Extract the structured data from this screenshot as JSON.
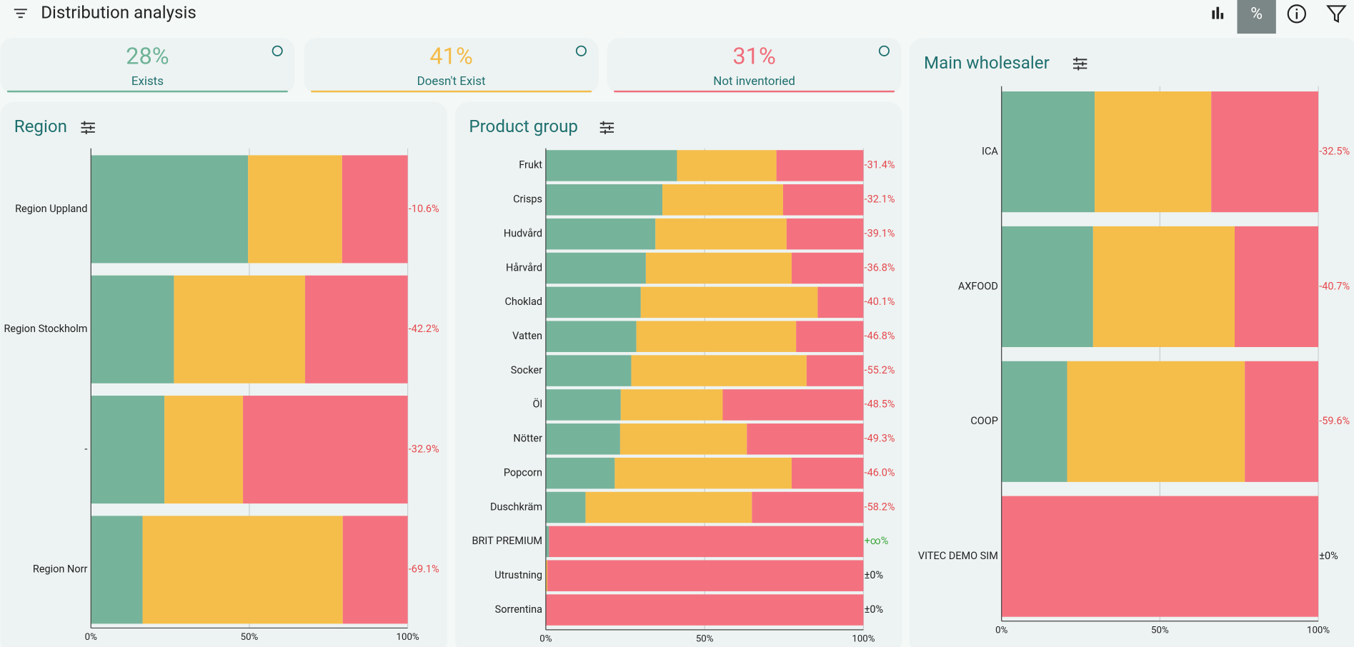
{
  "header": {
    "title": "Distribution analysis"
  },
  "kpis": [
    {
      "value": "28%",
      "label": "Exists",
      "color": "#6fb398"
    },
    {
      "value": "41%",
      "label": "Doesn't Exist",
      "color": "#f4bb48"
    },
    {
      "value": "31%",
      "label": "Not inventoried",
      "color": "#f06d7a"
    }
  ],
  "chart_data": [
    {
      "type": "stacked-bar",
      "title": "Region",
      "categories": [
        "Region Uppland",
        "Region Stockholm",
        "-",
        "Region Norr"
      ],
      "changes": [
        "-10.6%",
        "-42.2%",
        "-32.9%",
        "-69.1%"
      ],
      "series": [
        {
          "color": "#76b39b",
          "values": [
            49.6,
            26.2,
            23.2,
            16.3
          ]
        },
        {
          "color": "#f5be4b",
          "values": [
            29.7,
            41.4,
            24.8,
            63.2
          ]
        },
        {
          "color": "#f47280",
          "values": [
            20.7,
            32.4,
            52.0,
            20.5
          ]
        }
      ],
      "xlim": [
        0,
        100
      ],
      "xticks": [
        {
          "value": 0,
          "label": "0%"
        },
        {
          "value": 50,
          "label": "50%"
        },
        {
          "value": 100,
          "label": "100%"
        }
      ],
      "grid": true
    },
    {
      "type": "stacked-bar",
      "title": "Product group",
      "categories": [
        "Frukt",
        "Crisps",
        "Hudvård",
        "Hårvård",
        "Choklad",
        "Vatten",
        "Socker",
        "Öl",
        "Nötter",
        "Popcorn",
        "Duschkräm",
        "BRIT PREMIUM",
        "Utrustning",
        "Sorrentina"
      ],
      "changes": [
        "-31.4%",
        "-32.1%",
        "-39.1%",
        "-36.8%",
        "-40.1%",
        "-46.8%",
        "-55.2%",
        "-48.5%",
        "-49.3%",
        "-46.0%",
        "-58.2%",
        "+∞%",
        "±0%",
        "±0%"
      ],
      "series": [
        {
          "color": "#76b39b",
          "values": [
            41.3,
            36.7,
            34.5,
            31.5,
            29.9,
            28.5,
            26.9,
            23.6,
            23.4,
            21.7,
            12.5,
            1.0,
            0,
            0
          ]
        },
        {
          "color": "#f5be4b",
          "values": [
            31.3,
            38.0,
            41.3,
            45.9,
            55.7,
            50.3,
            55.2,
            32.1,
            39.9,
            55.7,
            52.4,
            0,
            0.5,
            0
          ]
        },
        {
          "color": "#f47280",
          "values": [
            27.4,
            25.3,
            24.2,
            22.6,
            14.4,
            21.2,
            17.9,
            44.3,
            36.7,
            22.6,
            35.1,
            99.0,
            99.5,
            100
          ]
        }
      ],
      "xlim": [
        0,
        100
      ],
      "xticks": [
        {
          "value": 0,
          "label": "0%"
        },
        {
          "value": 50,
          "label": "50%"
        },
        {
          "value": 100,
          "label": "100%"
        }
      ],
      "grid": true
    },
    {
      "type": "stacked-bar",
      "title": "Main wholesaler",
      "categories": [
        "ICA",
        "AXFOOD",
        "COOP",
        "VITEC DEMO SIM"
      ],
      "changes": [
        "-32.5%",
        "-40.7%",
        "-59.6%",
        "±0%"
      ],
      "series": [
        {
          "color": "#76b39b",
          "values": [
            29.4,
            28.9,
            20.7,
            0
          ]
        },
        {
          "color": "#f5be4b",
          "values": [
            36.8,
            44.7,
            56.1,
            0
          ]
        },
        {
          "color": "#f47280",
          "values": [
            33.8,
            26.4,
            23.2,
            100
          ]
        }
      ],
      "xlim": [
        0,
        100
      ],
      "xticks": [
        {
          "value": 0,
          "label": "0%"
        },
        {
          "value": 50,
          "label": "50%"
        },
        {
          "value": 100,
          "label": "100%"
        }
      ],
      "grid": true
    }
  ]
}
